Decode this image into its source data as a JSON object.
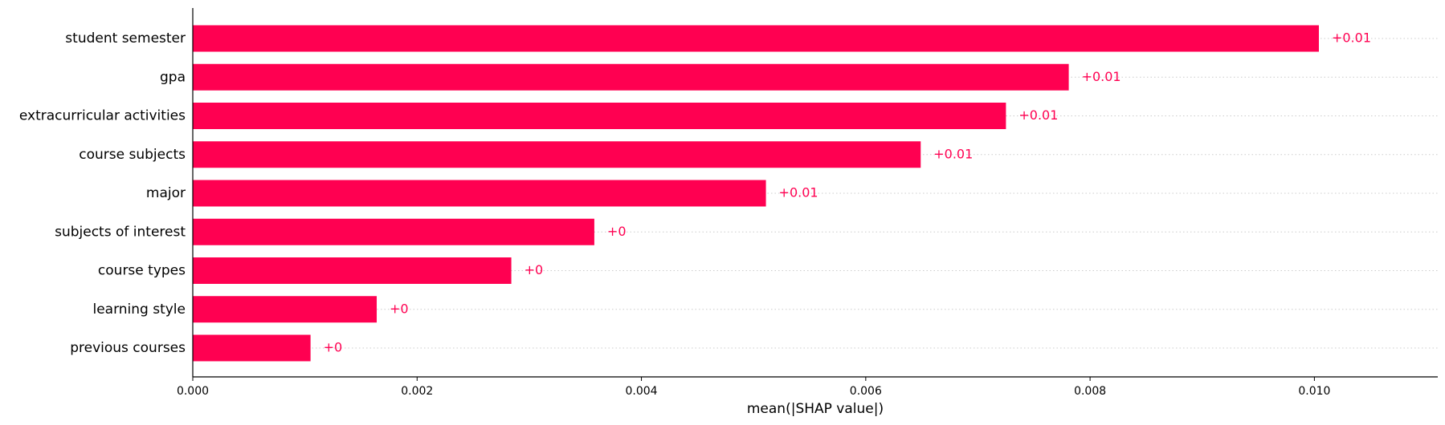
{
  "chart_data": {
    "type": "bar",
    "orientation": "horizontal",
    "categories": [
      "student semester",
      "gpa",
      "extracurricular activities",
      "course subjects",
      "major",
      "subjects of interest",
      "course types",
      "learning style",
      "previous courses"
    ],
    "values": [
      0.01004,
      0.00781,
      0.00725,
      0.00649,
      0.00511,
      0.00358,
      0.00284,
      0.00164,
      0.00105
    ],
    "value_labels": [
      "+0.01",
      "+0.01",
      "+0.01",
      "+0.01",
      "+0.01",
      "+0",
      "+0",
      "+0",
      "+0"
    ],
    "xlabel": "mean(|SHAP value|)",
    "ylabel": "",
    "xlim": [
      0,
      0.0111
    ],
    "xticks": [
      0.0,
      0.002,
      0.004,
      0.006,
      0.008,
      0.01
    ],
    "xtick_labels": [
      "0.000",
      "0.002",
      "0.004",
      "0.006",
      "0.008",
      "0.010"
    ],
    "bar_color": "#ff0051",
    "grid": false,
    "legend": "none"
  }
}
